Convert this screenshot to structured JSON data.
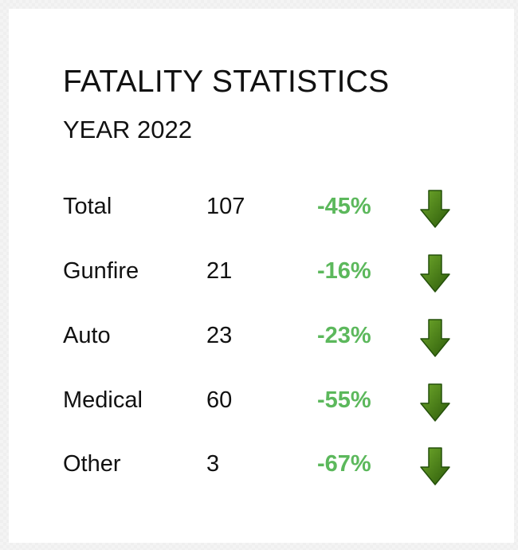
{
  "card": {
    "title": "FATALITY STATISTICS",
    "subtitle": "YEAR 2022"
  },
  "rows": [
    {
      "label": "Total",
      "count": "107",
      "change": "-45%",
      "trend_icon": "down-arrow-icon"
    },
    {
      "label": "Gunfire",
      "count": "21",
      "change": "-16%",
      "trend_icon": "down-arrow-icon"
    },
    {
      "label": "Auto",
      "count": "23",
      "change": "-23%",
      "trend_icon": "down-arrow-icon"
    },
    {
      "label": "Medical",
      "count": "60",
      "change": "-55%",
      "trend_icon": "down-arrow-icon"
    },
    {
      "label": "Other",
      "count": "3",
      "change": "-67%",
      "trend_icon": "down-arrow-icon"
    }
  ],
  "colors": {
    "change_text": "#5cb85c",
    "arrow_light": "#6fa82b",
    "arrow_dark": "#2c5a0a",
    "text": "#111111"
  }
}
